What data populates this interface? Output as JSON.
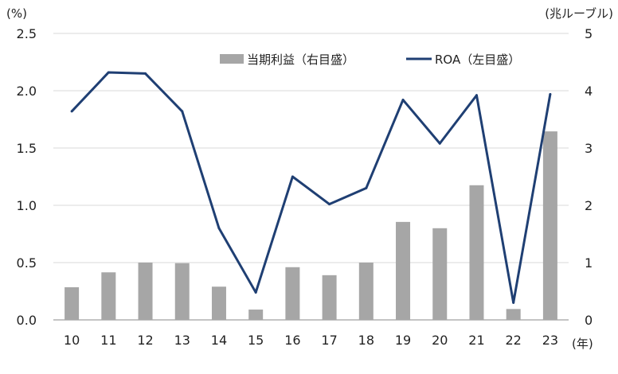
{
  "chart_data": {
    "type": "bar+line",
    "categories": [
      "10",
      "11",
      "12",
      "13",
      "14",
      "15",
      "16",
      "17",
      "18",
      "19",
      "20",
      "21",
      "22",
      "23"
    ],
    "series": [
      {
        "name": "当期利益（右目盛）",
        "type": "bar",
        "axis": "right",
        "color": "#a6a6a6",
        "values": [
          0.57,
          0.83,
          1.0,
          0.99,
          0.58,
          0.18,
          0.92,
          0.78,
          1.0,
          1.71,
          1.6,
          2.35,
          0.19,
          3.29
        ]
      },
      {
        "name": "ROA（左目盛）",
        "type": "line",
        "axis": "left",
        "color": "#1f3f73",
        "values": [
          1.82,
          2.16,
          2.15,
          1.82,
          0.8,
          0.24,
          1.25,
          1.01,
          1.15,
          1.92,
          1.54,
          1.96,
          0.15,
          1.97
        ]
      }
    ],
    "left_axis": {
      "unit": "(%)",
      "ylim": [
        0,
        2.5
      ],
      "ticks": [
        "0.0",
        "0.5",
        "1.0",
        "1.5",
        "2.0",
        "2.5"
      ]
    },
    "right_axis": {
      "unit": "(兆ルーブル)",
      "ylim": [
        0,
        5
      ],
      "ticks": [
        "0",
        "1",
        "2",
        "3",
        "4",
        "5"
      ]
    },
    "xlabel": "(年)",
    "grid": true,
    "legend": "top-right"
  }
}
